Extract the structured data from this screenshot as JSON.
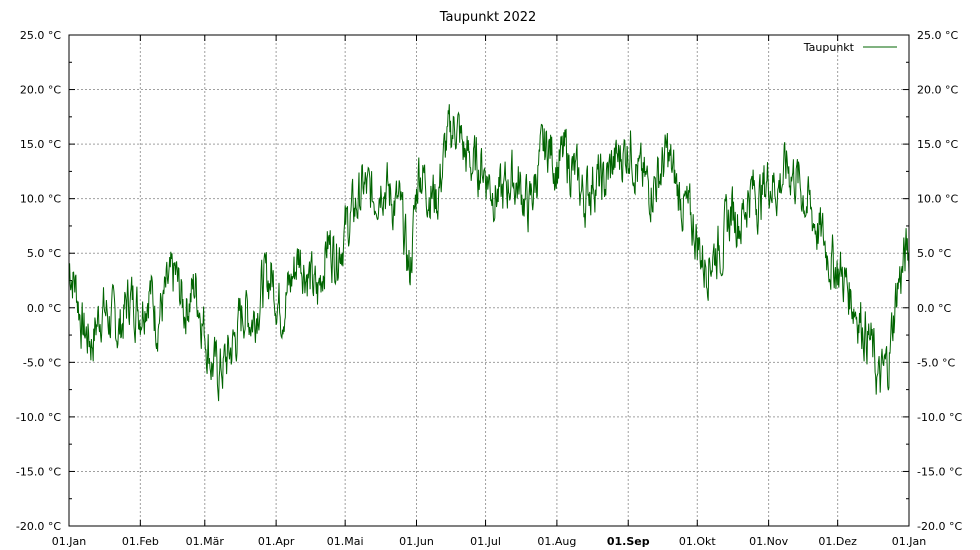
{
  "chart_data": {
    "type": "line",
    "title": "Taupunkt 2022",
    "xlabel": "",
    "ylabel": "",
    "y_unit": "°C",
    "ylim": [
      -20,
      25
    ],
    "y_ticks": [
      "25.0 °C",
      "20.0 °C",
      "15.0 °C",
      "10.0 °C",
      "5.0 °C",
      "0.0 °C",
      "-5.0 °C",
      "-10.0 °C",
      "-15.0 °C",
      "-20.0 °C"
    ],
    "y_tick_values": [
      25,
      20,
      15,
      10,
      5,
      0,
      -5,
      -10,
      -15,
      -20
    ],
    "x_range_days": [
      0,
      365
    ],
    "x_ticks": [
      "01.Jan",
      "01.Feb",
      "01.Mär",
      "01.Apr",
      "01.Mai",
      "01.Jun",
      "01.Jul",
      "01.Aug",
      "01.Sep",
      "01.Okt",
      "01.Nov",
      "01.Dez",
      "01.Jan"
    ],
    "x_tick_days": [
      0,
      31,
      59,
      90,
      120,
      151,
      181,
      212,
      243,
      273,
      304,
      334,
      365
    ],
    "highlight_tick": "01.Sep",
    "grid": true,
    "legend_position": "top-right",
    "series": [
      {
        "name": "Taupunkt",
        "color": "#006400",
        "x_days": [
          0,
          3,
          6,
          10,
          14,
          18,
          22,
          26,
          31,
          35,
          38,
          42,
          46,
          50,
          55,
          59,
          62,
          65,
          68,
          72,
          76,
          80,
          84,
          88,
          92,
          96,
          100,
          104,
          108,
          112,
          116,
          120,
          124,
          128,
          132,
          136,
          140,
          144,
          148,
          152,
          156,
          160,
          164,
          168,
          172,
          176,
          180,
          184,
          188,
          192,
          196,
          200,
          204,
          208,
          212,
          216,
          220,
          224,
          228,
          232,
          236,
          240,
          244,
          248,
          252,
          256,
          260,
          264,
          268,
          272,
          276,
          280,
          284,
          288,
          292,
          296,
          300,
          304,
          308,
          312,
          316,
          320,
          324,
          328,
          332,
          336,
          340,
          344,
          348,
          352,
          356,
          360,
          364
        ],
        "values": [
          4,
          2,
          -2,
          -3,
          0,
          -1,
          -2,
          1,
          0,
          2,
          -1,
          1,
          3,
          0,
          2,
          -2,
          -5,
          -6,
          -5,
          -3,
          0,
          -1,
          2,
          3,
          0,
          2,
          5,
          3,
          1,
          6,
          5,
          7,
          9,
          11,
          10,
          12,
          10,
          9,
          3,
          13,
          11,
          10,
          15,
          17,
          14,
          13,
          13,
          11,
          10,
          12,
          11,
          9,
          13,
          15,
          13,
          14,
          12,
          10,
          12,
          11,
          13,
          14,
          15,
          12,
          11,
          12,
          14,
          11,
          9,
          7,
          4,
          5,
          6,
          9,
          8,
          11,
          10,
          12,
          11,
          13,
          12,
          10,
          8,
          6,
          4,
          3,
          1,
          -1,
          -3,
          -7,
          -5,
          2,
          5
        ]
      }
    ]
  }
}
